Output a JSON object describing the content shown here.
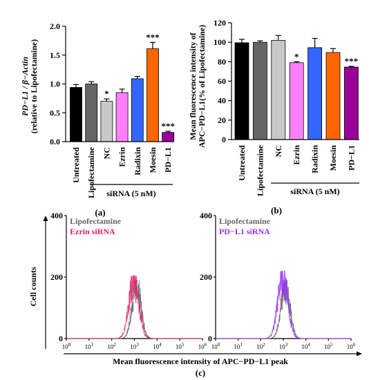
{
  "chart_data": [
    {
      "type": "bar",
      "panel_label": "(a)",
      "ylabel_line1": "PD−L1 / β−Actin",
      "ylabel_line2": "(relative to Lipofectamine)",
      "ylim": [
        0,
        2.0
      ],
      "yticks": [
        "0.0",
        "0.5",
        "1.0",
        "1.5",
        "2.0"
      ],
      "categories": [
        "Untreated",
        "Lipofectamine",
        "NC",
        "Ezrin",
        "Radixin",
        "Moesin",
        "PD−L1"
      ],
      "values": [
        0.94,
        1.0,
        0.7,
        0.85,
        1.09,
        1.61,
        0.16
      ],
      "errors": [
        0.05,
        0.04,
        0.04,
        0.06,
        0.04,
        0.11,
        0.02
      ],
      "significance": [
        "",
        "",
        "*",
        "",
        "",
        "***",
        "***"
      ],
      "colors": [
        "#000000",
        "#666666",
        "#c8c8c8",
        "#ff80ff",
        "#3366ff",
        "#ff6600",
        "#990099"
      ],
      "group_label": "siRNA (5 nM)"
    },
    {
      "type": "bar",
      "panel_label": "(b)",
      "ylabel_line1": "Mean fluorescence intensity of",
      "ylabel_line2": "APC−PD−L1(% of Lipofectamine)",
      "ylim": [
        0,
        120
      ],
      "yticks": [
        "0",
        "20",
        "40",
        "60",
        "80",
        "100",
        "120"
      ],
      "categories": [
        "Untreated",
        "Lipofectamine",
        "NC",
        "Ezrin",
        "Radixin",
        "Moesin",
        "PD−L1"
      ],
      "values": [
        99.5,
        100.0,
        102.0,
        79.0,
        94.5,
        89.5,
        74.5
      ],
      "errors": [
        3.5,
        1.5,
        5.0,
        1.0,
        9.5,
        4.0,
        0.8
      ],
      "significance": [
        "",
        "",
        "",
        "*",
        "",
        "",
        "***"
      ],
      "colors": [
        "#000000",
        "#666666",
        "#c8c8c8",
        "#ff80ff",
        "#3366ff",
        "#ff6600",
        "#990099"
      ],
      "group_label": "siRNA (5 nM)"
    },
    {
      "type": "line",
      "panel_label": "(c)",
      "ylabel": "Cell counts",
      "xlabel": "Mean fluorescence intensity of APC−PD−L1 peak",
      "ylim": [
        0,
        400
      ],
      "yticks": [
        "0",
        "200",
        "400"
      ],
      "xlog": true,
      "xlim": [
        1,
        1000000
      ],
      "xticks": [
        {
          "base": "10",
          "exp": "0"
        },
        {
          "base": "10",
          "exp": "1"
        },
        {
          "base": "10",
          "exp": "2"
        },
        {
          "base": "10",
          "exp": "3"
        },
        {
          "base": "10",
          "exp": "4"
        },
        {
          "base": "10",
          "exp": "5"
        },
        {
          "base": "10",
          "exp": "6"
        }
      ],
      "histograms": [
        {
          "series": [
            {
              "name": "Lipofectamine",
              "color": "#666666",
              "peak_x": 1250,
              "peak": 190
            },
            {
              "name": "Ezrin siRNA",
              "color": "#e0206a",
              "peak_x": 950,
              "peak": 205
            }
          ]
        },
        {
          "series": [
            {
              "name": "Lipofectamine",
              "color": "#666666",
              "peak_x": 1250,
              "peak": 190
            },
            {
              "name": "PD−L1 siRNA",
              "color": "#9933ff",
              "peak_x": 950,
              "peak": 220
            }
          ]
        }
      ]
    }
  ]
}
